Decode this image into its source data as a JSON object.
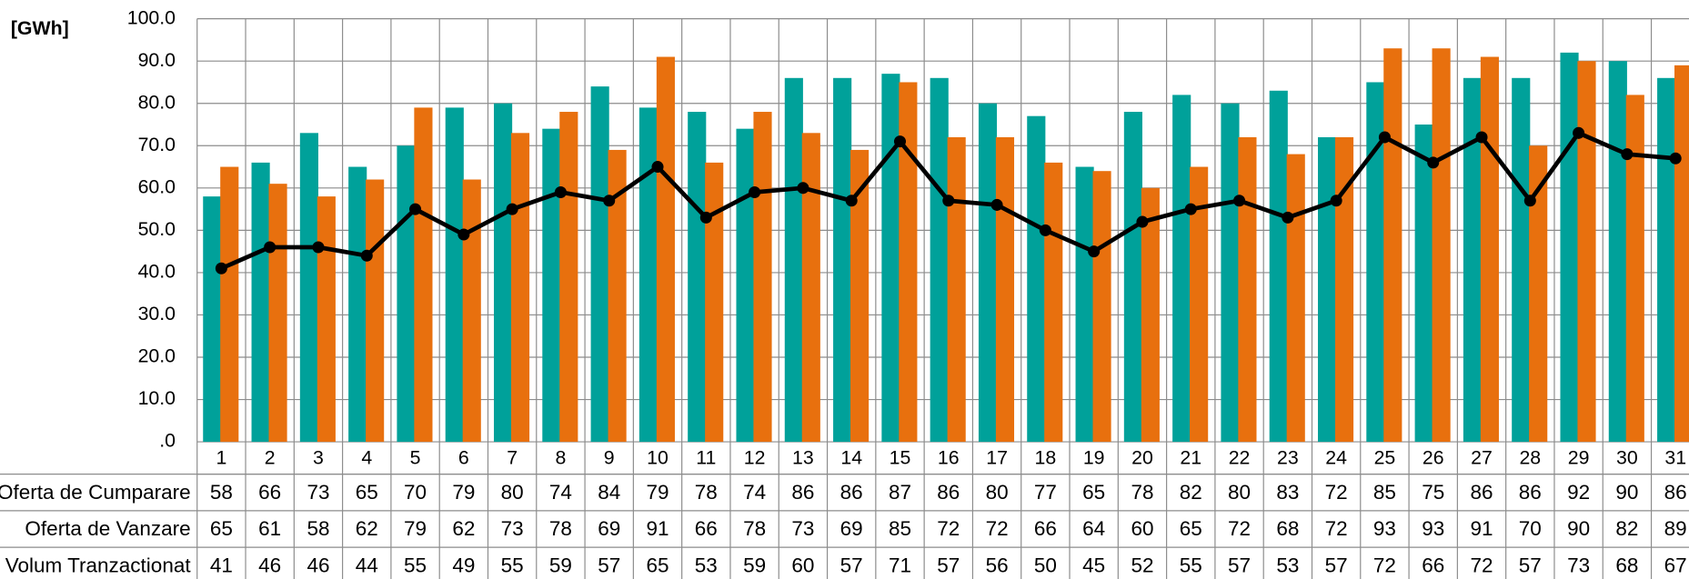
{
  "chart_data": {
    "type": "bar_line_table",
    "y_label": "[GWh]",
    "categories": [
      "1",
      "2",
      "3",
      "4",
      "5",
      "6",
      "7",
      "8",
      "9",
      "10",
      "11",
      "12",
      "13",
      "14",
      "15",
      "16",
      "17",
      "18",
      "19",
      "20",
      "21",
      "22",
      "23",
      "24",
      "25",
      "26",
      "27",
      "28",
      "29",
      "30",
      "31"
    ],
    "series": [
      {
        "name": "Oferta de Cumparare",
        "color": "#00a19a",
        "kind": "bar",
        "values": [
          58,
          66,
          73,
          65,
          70,
          79,
          80,
          74,
          84,
          79,
          78,
          74,
          86,
          86,
          87,
          86,
          80,
          77,
          65,
          78,
          82,
          80,
          83,
          72,
          85,
          75,
          86,
          86,
          92,
          90,
          86
        ]
      },
      {
        "name": "Oferta de Vanzare",
        "color": "#e8700e",
        "kind": "bar",
        "values": [
          65,
          61,
          58,
          62,
          79,
          62,
          73,
          78,
          69,
          91,
          66,
          78,
          73,
          69,
          85,
          72,
          72,
          66,
          64,
          60,
          65,
          72,
          68,
          72,
          93,
          93,
          91,
          70,
          90,
          82,
          89
        ]
      },
      {
        "name": "Volum Tranzactionat",
        "color": "#000000",
        "kind": "line",
        "values": [
          41,
          46,
          46,
          44,
          55,
          49,
          55,
          59,
          57,
          65,
          53,
          59,
          60,
          57,
          71,
          57,
          56,
          50,
          45,
          52,
          55,
          57,
          53,
          57,
          72,
          66,
          72,
          57,
          73,
          68,
          67
        ]
      }
    ],
    "ylim": [
      0,
      100
    ],
    "yticks": [
      {
        "value": 0,
        "label": ".0"
      },
      {
        "value": 10,
        "label": "10.0"
      },
      {
        "value": 20,
        "label": "20.0"
      },
      {
        "value": 30,
        "label": "30.0"
      },
      {
        "value": 40,
        "label": "40.0"
      },
      {
        "value": 50,
        "label": "50.0"
      },
      {
        "value": 60,
        "label": "60.0"
      },
      {
        "value": 70,
        "label": "70.0"
      },
      {
        "value": 80,
        "label": "80.0"
      },
      {
        "value": 90,
        "label": "90.0"
      },
      {
        "value": 100,
        "label": "100.0"
      }
    ],
    "grid": true
  }
}
